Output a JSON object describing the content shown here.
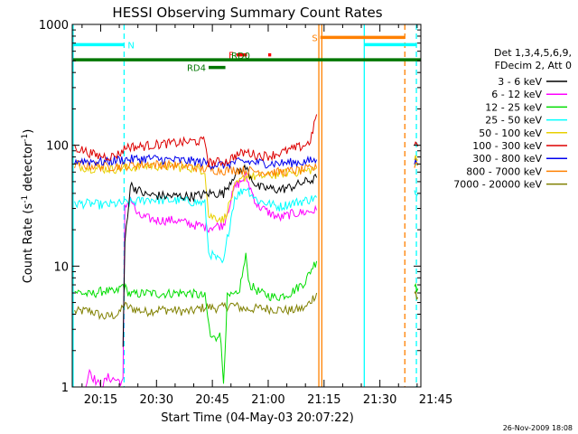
{
  "chart_data": {
    "type": "line",
    "title": "HESSI Observing Summary Count Rates",
    "xlabel": "Start Time (04-May-03 20:07:22)",
    "ylabel_main": "Count Rate (s",
    "ylabel_sup1": "-1",
    "ylabel_mid": " detector",
    "ylabel_sup2": "-1",
    "ylabel_end": ")",
    "y_scale": "log",
    "ylim": [
      1,
      1000
    ],
    "xlim_minutes": [
      7.37,
      101.0
    ],
    "y_ticks": [
      {
        "value": 1,
        "label": "1"
      },
      {
        "value": 10,
        "label": "10"
      },
      {
        "value": 100,
        "label": "100"
      },
      {
        "value": 1000,
        "label": "1000"
      }
    ],
    "x_ticks": [
      {
        "minute": 15,
        "label": "20:15"
      },
      {
        "minute": 30,
        "label": "20:30"
      },
      {
        "minute": 45,
        "label": "20:45"
      },
      {
        "minute": 60,
        "label": "21:00"
      },
      {
        "minute": 75,
        "label": "21:15"
      },
      {
        "minute": 90,
        "label": "21:30"
      },
      {
        "minute": 105,
        "label": "21:45"
      }
    ],
    "legend_header": [
      "Det 1,3,4,5,6,9,",
      "FDecim 2, Att 0"
    ],
    "series": [
      {
        "name": "3 - 6 keV",
        "color": "#000000",
        "points": [
          [
            21.0,
            2
          ],
          [
            21.5,
            16
          ],
          [
            23,
            47
          ],
          [
            27,
            39
          ],
          [
            33,
            38
          ],
          [
            40,
            38
          ],
          [
            44,
            40
          ],
          [
            48,
            40
          ],
          [
            51,
            58
          ],
          [
            54,
            65
          ],
          [
            57,
            45
          ],
          [
            60,
            44
          ],
          [
            63,
            43
          ],
          [
            66,
            45
          ],
          [
            70,
            50
          ],
          [
            72,
            52
          ],
          [
            73,
            54
          ]
        ]
      },
      {
        "name": "6 - 12 keV",
        "color": "#ff00ff",
        "points": [
          [
            11,
            1.0
          ],
          [
            12,
            1.4
          ],
          [
            13,
            1.2
          ],
          [
            15,
            1.0
          ],
          [
            17,
            1.2
          ],
          [
            21.0,
            1.1
          ],
          [
            21.5,
            30
          ],
          [
            23,
            37
          ],
          [
            25,
            26
          ],
          [
            30,
            24
          ],
          [
            35,
            24
          ],
          [
            40,
            22
          ],
          [
            44,
            21
          ],
          [
            48,
            22
          ],
          [
            51,
            45
          ],
          [
            54,
            55
          ],
          [
            57,
            32
          ],
          [
            60,
            28
          ],
          [
            63,
            25
          ],
          [
            66,
            27
          ],
          [
            70,
            28
          ],
          [
            73,
            29
          ]
        ]
      },
      {
        "name": "12 - 25 keV",
        "color": "#00dd00",
        "points": [
          [
            8,
            6.2
          ],
          [
            12,
            5.8
          ],
          [
            16,
            6.3
          ],
          [
            19,
            6.0
          ],
          [
            21,
            7.0
          ],
          [
            23,
            5.8
          ],
          [
            27,
            6.0
          ],
          [
            31,
            5.9
          ],
          [
            35,
            6.0
          ],
          [
            39,
            6.0
          ],
          [
            43,
            5.6
          ],
          [
            44.5,
            2.6
          ],
          [
            46,
            2.5
          ],
          [
            47,
            3.0
          ],
          [
            48,
            1.1
          ],
          [
            49,
            5.5
          ],
          [
            52,
            5.8
          ],
          [
            54,
            12
          ],
          [
            55,
            7
          ],
          [
            58,
            6
          ],
          [
            62,
            5.5
          ],
          [
            66,
            6.0
          ],
          [
            70,
            7.5
          ],
          [
            72,
            10
          ],
          [
            73,
            11
          ]
        ]
      },
      {
        "name": "25 - 50 keV",
        "color": "#00ffff",
        "points": [
          [
            8,
            33
          ],
          [
            12,
            33
          ],
          [
            16,
            32
          ],
          [
            20,
            33
          ],
          [
            24,
            34
          ],
          [
            28,
            36
          ],
          [
            32,
            35
          ],
          [
            36,
            35
          ],
          [
            40,
            34
          ],
          [
            43,
            33
          ],
          [
            44,
            13
          ],
          [
            47,
            11
          ],
          [
            48,
            10.5
          ],
          [
            49,
            17
          ],
          [
            51,
            37
          ],
          [
            54,
            45
          ],
          [
            57,
            35
          ],
          [
            60,
            33
          ],
          [
            63,
            31
          ],
          [
            66,
            33
          ],
          [
            70,
            35
          ],
          [
            73,
            37
          ]
        ]
      },
      {
        "name": "50 - 100 keV",
        "color": "#e8d000",
        "points": [
          [
            8,
            68
          ],
          [
            12,
            65
          ],
          [
            16,
            64
          ],
          [
            20,
            64
          ],
          [
            24,
            66
          ],
          [
            28,
            68
          ],
          [
            32,
            67
          ],
          [
            36,
            66
          ],
          [
            40,
            65
          ],
          [
            43,
            62
          ],
          [
            44,
            26
          ],
          [
            47,
            25
          ],
          [
            48,
            24
          ],
          [
            49,
            29
          ],
          [
            51,
            45
          ],
          [
            54,
            56
          ],
          [
            57,
            55
          ],
          [
            60,
            56
          ],
          [
            63,
            58
          ],
          [
            66,
            60
          ],
          [
            70,
            61
          ],
          [
            73,
            65
          ]
        ]
      },
      {
        "name": "100 - 300 keV",
        "color": "#dd0000",
        "points": [
          [
            8,
            96
          ],
          [
            10,
            92
          ],
          [
            14,
            82
          ],
          [
            18,
            81
          ],
          [
            20,
            85
          ],
          [
            22,
            98
          ],
          [
            25,
            97
          ],
          [
            28,
            100
          ],
          [
            32,
            103
          ],
          [
            36,
            105
          ],
          [
            40,
            108
          ],
          [
            43,
            108
          ],
          [
            44,
            72
          ],
          [
            47,
            73
          ],
          [
            49,
            74
          ],
          [
            51,
            82
          ],
          [
            54,
            88
          ],
          [
            57,
            83
          ],
          [
            60,
            82
          ],
          [
            63,
            86
          ],
          [
            66,
            92
          ],
          [
            69,
            98
          ],
          [
            71,
            105
          ],
          [
            72,
            130
          ],
          [
            73,
            180
          ]
        ]
      },
      {
        "name": "300 - 800 keV",
        "color": "#0000ee",
        "points": [
          [
            8,
            75
          ],
          [
            12,
            74
          ],
          [
            16,
            73
          ],
          [
            20,
            76
          ],
          [
            24,
            77
          ],
          [
            28,
            78
          ],
          [
            32,
            76
          ],
          [
            36,
            75
          ],
          [
            40,
            74
          ],
          [
            43,
            72
          ],
          [
            44,
            70
          ],
          [
            48,
            69
          ],
          [
            51,
            72
          ],
          [
            54,
            73
          ],
          [
            57,
            72
          ],
          [
            60,
            71
          ],
          [
            63,
            71
          ],
          [
            66,
            72
          ],
          [
            70,
            73
          ],
          [
            73,
            76
          ]
        ]
      },
      {
        "name": "800 - 7000 keV",
        "color": "#ff8000",
        "points": [
          [
            8,
            70
          ],
          [
            12,
            68
          ],
          [
            16,
            67
          ],
          [
            20,
            67
          ],
          [
            24,
            69
          ],
          [
            28,
            70
          ],
          [
            32,
            69
          ],
          [
            36,
            68
          ],
          [
            40,
            66
          ],
          [
            43,
            64
          ],
          [
            44,
            63
          ],
          [
            48,
            62
          ],
          [
            51,
            63
          ],
          [
            54,
            62
          ],
          [
            57,
            61
          ],
          [
            60,
            60
          ],
          [
            63,
            60
          ],
          [
            66,
            61
          ],
          [
            70,
            63
          ],
          [
            73,
            65
          ]
        ]
      },
      {
        "name": "7000 - 20000 keV",
        "color": "#808000",
        "points": [
          [
            8,
            4.2
          ],
          [
            12,
            4.3
          ],
          [
            16,
            3.8
          ],
          [
            20,
            4.0
          ],
          [
            21,
            4.8
          ],
          [
            23,
            4.5
          ],
          [
            27,
            4.2
          ],
          [
            31,
            4.4
          ],
          [
            35,
            4.3
          ],
          [
            39,
            4.2
          ],
          [
            43,
            4.6
          ],
          [
            47,
            4.5
          ],
          [
            50,
            4.8
          ],
          [
            54,
            4.4
          ],
          [
            58,
            4.5
          ],
          [
            62,
            4.4
          ],
          [
            66,
            4.3
          ],
          [
            70,
            4.5
          ],
          [
            73,
            6
          ]
        ]
      }
    ],
    "after_gap_series": [
      {
        "color": "#dd0000",
        "points": [
          [
            99.3,
            105
          ],
          [
            100.2,
            98
          ]
        ]
      },
      {
        "color": "#0000ee",
        "points": [
          [
            99.3,
            72
          ],
          [
            100.2,
            70
          ]
        ]
      },
      {
        "color": "#e8d000",
        "points": [
          [
            99.3,
            78
          ],
          [
            100.2,
            76
          ]
        ]
      },
      {
        "color": "#ff8000",
        "points": [
          [
            99.3,
            70
          ],
          [
            100.2,
            68
          ]
        ]
      },
      {
        "color": "#00ffff",
        "points": [
          [
            99.3,
            42
          ],
          [
            100.2,
            40
          ]
        ]
      },
      {
        "color": "#00dd00",
        "points": [
          [
            99.3,
            7.0
          ],
          [
            100.2,
            6.5
          ]
        ]
      },
      {
        "color": "#808000",
        "points": [
          [
            99.3,
            6.0
          ],
          [
            100.2,
            5.5
          ]
        ]
      }
    ],
    "vertical_markers": [
      {
        "minute": 7.6,
        "color": "#00ffff",
        "style": "solid"
      },
      {
        "minute": 21.3,
        "color": "#00ffff",
        "style": "dashed"
      },
      {
        "minute": 73.6,
        "color": "#ff8000",
        "style": "solid"
      },
      {
        "minute": 74.4,
        "color": "#ff8000",
        "style": "solid"
      },
      {
        "minute": 85.8,
        "color": "#00ffff",
        "style": "solid"
      },
      {
        "minute": 96.7,
        "color": "#ff8000",
        "style": "dashed"
      },
      {
        "minute": 99.8,
        "color": "#00ffff",
        "style": "dashed"
      }
    ],
    "flag_bars": [
      {
        "label": "N",
        "color": "#00ffff",
        "x1": 7.6,
        "x2": 21.3,
        "y": 680,
        "label_side": "right"
      },
      {
        "label": "",
        "color": "#00ffff",
        "x1": 85.8,
        "x2": 99.8,
        "y": 680,
        "label_side": "none"
      },
      {
        "label": "S",
        "color": "#ff8000",
        "x1": 74.0,
        "x2": 96.7,
        "y": 780,
        "label_side": "left"
      },
      {
        "label": "F",
        "color": "#ff0000",
        "x1": 51.5,
        "x2": 54.3,
        "y": 560,
        "label_side": "left"
      },
      {
        "label": "",
        "color": "#ff0000",
        "x1": 60.0,
        "x2": 60.8,
        "y": 560,
        "label_side": "none"
      },
      {
        "label": "RD0",
        "color": "#007700",
        "x1": 7.6,
        "x2": 101.0,
        "y": 510,
        "label_side": "left-above"
      },
      {
        "label": "RD4",
        "color": "#007700",
        "x1": 44.0,
        "x2": 48.5,
        "y": 440,
        "label_side": "left"
      }
    ]
  },
  "timestamp": "26-Nov-2009 18:08"
}
